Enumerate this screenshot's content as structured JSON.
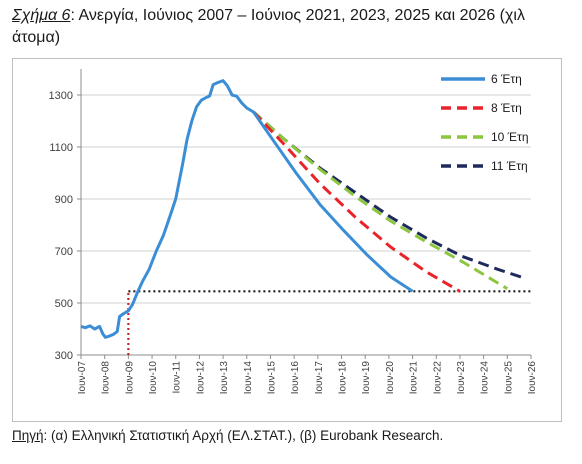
{
  "figure": {
    "label": "Σχήμα 6",
    "title": ": Ανεργία, Ιούνιος 2007 – Ιούνιος 2021, 2023, 2025 και 2026 (χιλ άτομα)"
  },
  "source": {
    "label": "Πηγή",
    "text": ": (α) Ελληνική Στατιστική Αρχή (ΕΛ.ΣΤΑΤ.), (β) Eurobank Research."
  },
  "colors": {
    "actual": "#3b8ed6",
    "s6": "#3b8ed6",
    "s8": "#e8232a",
    "s10": "#8cc63f",
    "s11": "#1f2a5c",
    "threshold": "#1a1a1a",
    "marker": "#c0282d"
  },
  "chart_data": {
    "type": "line",
    "title": "",
    "xlabel": "",
    "ylabel": "",
    "ylim": [
      300,
      1400
    ],
    "yticks": [
      300,
      500,
      700,
      900,
      1100,
      1300
    ],
    "xlim": [
      2007.42,
      2026.42
    ],
    "xticks": [
      {
        "x": 2007.42,
        "label": "Ιουν-07"
      },
      {
        "x": 2008.42,
        "label": "Ιουν-08"
      },
      {
        "x": 2009.42,
        "label": "Ιουν-09"
      },
      {
        "x": 2010.42,
        "label": "Ιουν-10"
      },
      {
        "x": 2011.42,
        "label": "Ιουν-11"
      },
      {
        "x": 2012.42,
        "label": "Ιουν-12"
      },
      {
        "x": 2013.42,
        "label": "Ιουν-13"
      },
      {
        "x": 2014.42,
        "label": "Ιουν-14"
      },
      {
        "x": 2015.42,
        "label": "Ιουν-15"
      },
      {
        "x": 2016.42,
        "label": "Ιουν-16"
      },
      {
        "x": 2017.42,
        "label": "Ιουν-17"
      },
      {
        "x": 2018.42,
        "label": "Ιουν-18"
      },
      {
        "x": 2019.42,
        "label": "Ιουν-19"
      },
      {
        "x": 2020.42,
        "label": "Ιουν-20"
      },
      {
        "x": 2021.42,
        "label": "Ιουν-21"
      },
      {
        "x": 2022.42,
        "label": "Ιουν-22"
      },
      {
        "x": 2023.42,
        "label": "Ιουν-23"
      },
      {
        "x": 2024.42,
        "label": "Ιουν-24"
      },
      {
        "x": 2025.42,
        "label": "Ιουν-25"
      },
      {
        "x": 2026.42,
        "label": "Ιουν-26"
      }
    ],
    "legend_position": "top-right",
    "grid": "horizontal",
    "series": [
      {
        "name": "",
        "key": "actual",
        "style": "solid",
        "points": [
          [
            2007.42,
            410
          ],
          [
            2007.6,
            405
          ],
          [
            2007.8,
            412
          ],
          [
            2008.0,
            400
          ],
          [
            2008.2,
            410
          ],
          [
            2008.35,
            380
          ],
          [
            2008.45,
            368
          ],
          [
            2008.6,
            372
          ],
          [
            2008.8,
            380
          ],
          [
            2008.95,
            390
          ],
          [
            2009.05,
            448
          ],
          [
            2009.2,
            458
          ],
          [
            2009.42,
            470
          ],
          [
            2009.6,
            495
          ],
          [
            2009.8,
            540
          ],
          [
            2010.0,
            580
          ],
          [
            2010.3,
            630
          ],
          [
            2010.6,
            700
          ],
          [
            2010.9,
            760
          ],
          [
            2011.2,
            840
          ],
          [
            2011.42,
            900
          ],
          [
            2011.7,
            1030
          ],
          [
            2011.9,
            1130
          ],
          [
            2012.1,
            1200
          ],
          [
            2012.3,
            1255
          ],
          [
            2012.5,
            1280
          ],
          [
            2012.7,
            1290
          ],
          [
            2012.85,
            1296
          ],
          [
            2013.0,
            1340
          ],
          [
            2013.2,
            1348
          ],
          [
            2013.42,
            1355
          ],
          [
            2013.6,
            1335
          ],
          [
            2013.8,
            1300
          ],
          [
            2014.0,
            1295
          ],
          [
            2014.2,
            1270
          ],
          [
            2014.42,
            1250
          ],
          [
            2014.7,
            1235
          ]
        ]
      },
      {
        "name": "6 Έτη",
        "key": "s6",
        "style": "solid",
        "points": [
          [
            2014.7,
            1235
          ],
          [
            2015.5,
            1130
          ],
          [
            2016.5,
            1000
          ],
          [
            2017.5,
            880
          ],
          [
            2018.5,
            780
          ],
          [
            2019.5,
            685
          ],
          [
            2020.5,
            600
          ],
          [
            2021.42,
            545
          ]
        ]
      },
      {
        "name": "8 Έτη",
        "key": "s8",
        "style": "dashed",
        "points": [
          [
            2014.7,
            1235
          ],
          [
            2016.0,
            1110
          ],
          [
            2017.5,
            960
          ],
          [
            2019.0,
            830
          ],
          [
            2020.5,
            715
          ],
          [
            2022.0,
            620
          ],
          [
            2023.42,
            545
          ]
        ]
      },
      {
        "name": "10 Έτη",
        "key": "s10",
        "style": "dashed",
        "points": [
          [
            2014.7,
            1235
          ],
          [
            2016.0,
            1130
          ],
          [
            2017.5,
            1015
          ],
          [
            2019.0,
            910
          ],
          [
            2020.5,
            815
          ],
          [
            2022.0,
            735
          ],
          [
            2023.5,
            660
          ],
          [
            2025.42,
            555
          ]
        ]
      },
      {
        "name": "11 Έτη",
        "key": "s11",
        "style": "dashed",
        "points": [
          [
            2014.7,
            1235
          ],
          [
            2016.0,
            1130
          ],
          [
            2017.5,
            1020
          ],
          [
            2019.0,
            925
          ],
          [
            2020.5,
            830
          ],
          [
            2022.0,
            750
          ],
          [
            2023.5,
            680
          ],
          [
            2025.0,
            630
          ],
          [
            2026.0,
            600
          ]
        ]
      }
    ],
    "reference_lines": [
      {
        "kind": "horizontal",
        "y": 545,
        "x_from": 2009.42,
        "x_to": 2026.42,
        "key": "threshold"
      },
      {
        "kind": "vertical",
        "x": 2009.42,
        "y_from": 300,
        "y_to": 545,
        "key": "marker"
      }
    ]
  }
}
